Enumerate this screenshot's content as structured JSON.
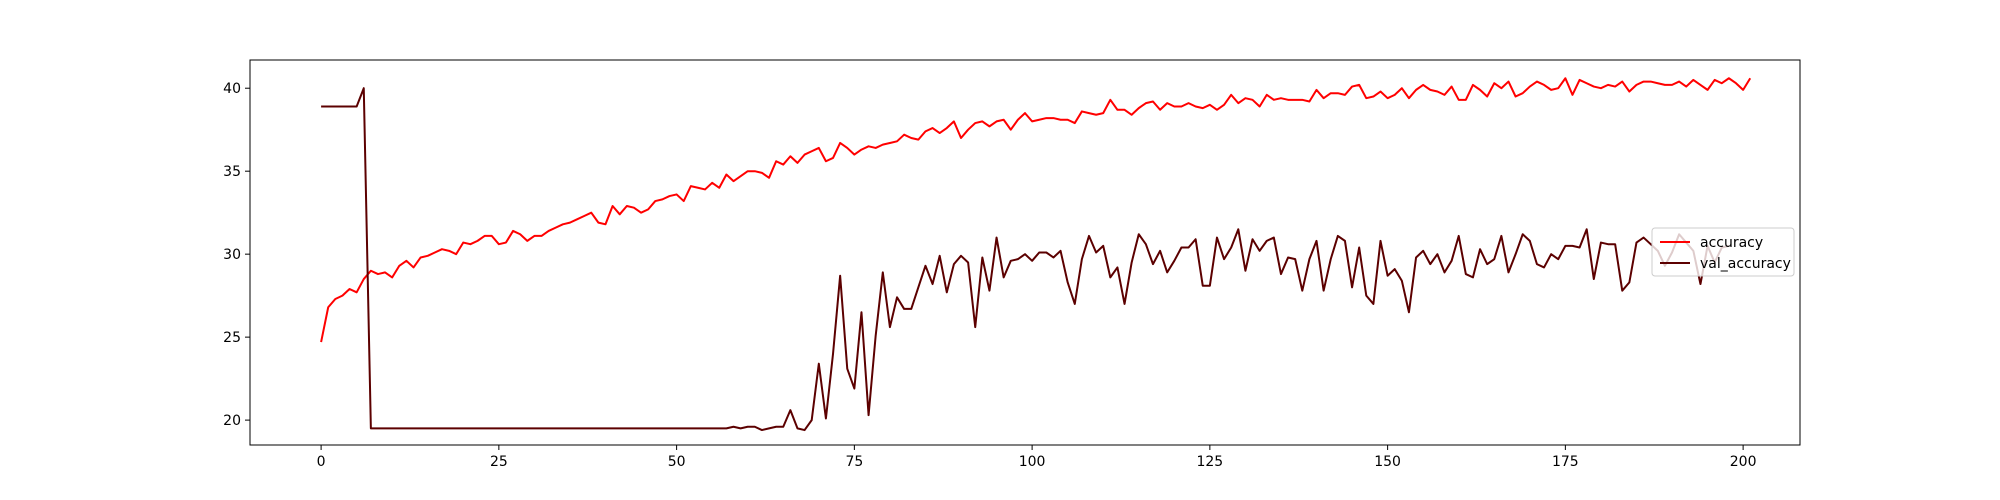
{
  "chart_data": {
    "type": "line",
    "title": "",
    "xlabel": "",
    "ylabel": "",
    "xlim": [
      -10,
      208
    ],
    "ylim": [
      18.5,
      41.7
    ],
    "xticks": [
      0,
      25,
      50,
      75,
      100,
      125,
      150,
      175,
      200
    ],
    "yticks": [
      20,
      25,
      30,
      35,
      40
    ],
    "grid": false,
    "legend_position": "center-right",
    "series": [
      {
        "name": "accuracy",
        "color": "#ff0000",
        "values": [
          24.7,
          26.8,
          27.3,
          27.5,
          27.9,
          27.7,
          28.5,
          29.0,
          28.8,
          28.9,
          28.6,
          29.3,
          29.6,
          29.2,
          29.8,
          29.9,
          30.1,
          30.3,
          30.2,
          30.0,
          30.7,
          30.6,
          30.8,
          31.1,
          31.1,
          30.6,
          30.7,
          31.4,
          31.2,
          30.8,
          31.1,
          31.1,
          31.4,
          31.6,
          31.8,
          31.9,
          32.1,
          32.3,
          32.5,
          31.9,
          31.8,
          32.9,
          32.4,
          32.9,
          32.8,
          32.5,
          32.7,
          33.2,
          33.3,
          33.5,
          33.6,
          33.2,
          34.1,
          34.0,
          33.9,
          34.3,
          34.0,
          34.8,
          34.4,
          34.7,
          35.0,
          35.0,
          34.9,
          34.6,
          35.6,
          35.4,
          35.9,
          35.5,
          36.0,
          36.2,
          36.4,
          35.6,
          35.8,
          36.7,
          36.4,
          36.0,
          36.3,
          36.5,
          36.4,
          36.6,
          36.7,
          36.8,
          37.2,
          37.0,
          36.9,
          37.4,
          37.6,
          37.3,
          37.6,
          38.0,
          37.0,
          37.5,
          37.9,
          38.0,
          37.7,
          38.0,
          38.1,
          37.5,
          38.1,
          38.5,
          38.0,
          38.1,
          38.2,
          38.2,
          38.1,
          38.1,
          37.9,
          38.6,
          38.5,
          38.4,
          38.5,
          39.3,
          38.7,
          38.7,
          38.4,
          38.8,
          39.1,
          39.2,
          38.7,
          39.1,
          38.9,
          38.9,
          39.1,
          38.9,
          38.8,
          39.0,
          38.7,
          39.0,
          39.6,
          39.1,
          39.4,
          39.3,
          38.9,
          39.6,
          39.3,
          39.4,
          39.3,
          39.3,
          39.3,
          39.2,
          39.9,
          39.4,
          39.7,
          39.7,
          39.6,
          40.1,
          40.2,
          39.4,
          39.5,
          39.8,
          39.4,
          39.6,
          40.0,
          39.4,
          39.9,
          40.2,
          39.9,
          39.8,
          39.6,
          40.1,
          39.3,
          39.3,
          40.2,
          39.9,
          39.5,
          40.3,
          40.0,
          40.4,
          39.5,
          39.7,
          40.1,
          40.4,
          40.2,
          39.9,
          40.0,
          40.6,
          39.6,
          40.5,
          40.3,
          40.1,
          40.0,
          40.2,
          40.1,
          40.4,
          39.8,
          40.2,
          40.4,
          40.4,
          40.3,
          40.2,
          40.2,
          40.4,
          40.1,
          40.5,
          40.2,
          39.9,
          40.5,
          40.3,
          40.6,
          40.3,
          39.9,
          40.6
        ]
      },
      {
        "name": "val_accuracy",
        "color": "#5c0000",
        "values": [
          38.9,
          38.9,
          38.9,
          38.9,
          38.9,
          38.9,
          40.0,
          19.5,
          19.5,
          19.5,
          19.5,
          19.5,
          19.5,
          19.5,
          19.5,
          19.5,
          19.5,
          19.5,
          19.5,
          19.5,
          19.5,
          19.5,
          19.5,
          19.5,
          19.5,
          19.5,
          19.5,
          19.5,
          19.5,
          19.5,
          19.5,
          19.5,
          19.5,
          19.5,
          19.5,
          19.5,
          19.5,
          19.5,
          19.5,
          19.5,
          19.5,
          19.5,
          19.5,
          19.5,
          19.5,
          19.5,
          19.5,
          19.5,
          19.5,
          19.5,
          19.5,
          19.5,
          19.5,
          19.5,
          19.5,
          19.5,
          19.5,
          19.5,
          19.6,
          19.5,
          19.6,
          19.6,
          19.4,
          19.5,
          19.6,
          19.6,
          20.6,
          19.5,
          19.4,
          20.0,
          23.4,
          20.1,
          24.0,
          28.7,
          23.1,
          21.9,
          26.5,
          20.3,
          25.1,
          28.9,
          25.6,
          27.4,
          26.7,
          26.7,
          28.0,
          29.3,
          28.2,
          29.9,
          27.7,
          29.4,
          29.9,
          29.5,
          25.6,
          29.8,
          27.8,
          31.0,
          28.6,
          29.6,
          29.7,
          30.0,
          29.6,
          30.1,
          30.1,
          29.8,
          30.2,
          28.3,
          27.0,
          29.7,
          31.1,
          30.1,
          30.5,
          28.6,
          29.2,
          27.0,
          29.5,
          31.2,
          30.6,
          29.4,
          30.2,
          28.9,
          29.6,
          30.4,
          30.4,
          30.9,
          28.1,
          28.1,
          31.0,
          29.7,
          30.4,
          31.5,
          29.0,
          30.9,
          30.2,
          30.8,
          31.0,
          28.8,
          29.8,
          29.7,
          27.8,
          29.7,
          30.8,
          27.8,
          29.7,
          31.1,
          30.8,
          28.0,
          30.4,
          27.5,
          27.0,
          30.8,
          28.7,
          29.1,
          28.4,
          26.5,
          29.8,
          30.2,
          29.4,
          30.0,
          28.9,
          29.6,
          31.1,
          28.8,
          28.6,
          30.3,
          29.4,
          29.7,
          31.1,
          28.9,
          30.0,
          31.2,
          30.8,
          29.4,
          29.2,
          30.0,
          29.7,
          30.5,
          30.5,
          30.4,
          31.5,
          28.5,
          30.7,
          30.6,
          30.6,
          27.8,
          28.3,
          30.7,
          31.0,
          30.6,
          30.2,
          29.3,
          30.1,
          31.2,
          30.7,
          30.2,
          28.2,
          30.5,
          29.5,
          30.4,
          30.5
        ]
      }
    ]
  }
}
